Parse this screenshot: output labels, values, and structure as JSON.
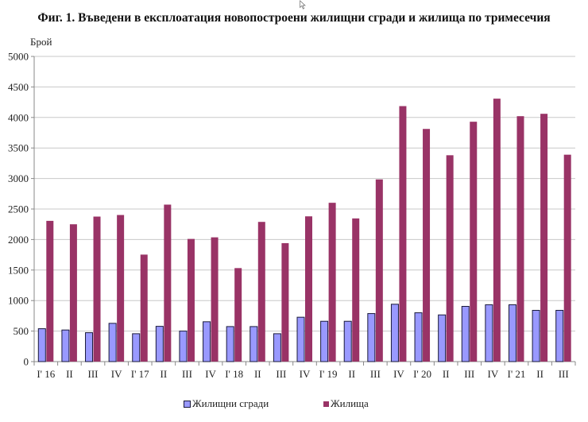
{
  "title": "Фиг. 1. Въведени в експлоатация новопостроени жилищни сгради и жилища по тримесечия",
  "colors": {
    "buildings": "#9999ff",
    "buildings_border": "#1a1a3a",
    "dwellings": "#993366",
    "grid": "#c8c8c8",
    "axis": "#888888"
  },
  "legend": [
    {
      "label": "Жилищни сгради",
      "color": "#9999ff"
    },
    {
      "label": "Жилища",
      "color": "#993366"
    }
  ],
  "chart_data": {
    "type": "bar",
    "title": "Фиг. 1. Въведени в експлоатация новопостроени жилищни сгради и жилища по тримесечия",
    "xlabel": "",
    "ylabel": "Брой",
    "ylim": [
      0,
      5000
    ],
    "yticks": [
      0,
      500,
      1000,
      1500,
      2000,
      2500,
      3000,
      3500,
      4000,
      4500,
      5000
    ],
    "grid": true,
    "legend_position": "bottom",
    "categories": [
      "I' 16",
      "II",
      "III",
      "IV",
      "I' 17",
      "II",
      "III",
      "IV",
      "I' 18",
      "II",
      "III",
      "IV",
      "I' 19",
      "II",
      "III",
      "IV",
      "I' 20",
      "II",
      "III",
      "IV",
      "I' 21",
      "II",
      "III"
    ],
    "series": [
      {
        "name": "Жилищни сгради",
        "values": [
          539,
          518,
          474,
          627,
          457,
          578,
          500,
          653,
          574,
          574,
          457,
          727,
          661,
          661,
          787,
          940,
          800,
          765,
          905,
          931,
          931,
          840,
          840
        ]
      },
      {
        "name": "Жилища",
        "values": [
          2306,
          2250,
          2376,
          2402,
          1753,
          2572,
          2010,
          2036,
          1532,
          2289,
          1941,
          2380,
          2602,
          2346,
          2985,
          4186,
          3812,
          3381,
          3930,
          4308,
          4021,
          4060,
          3390
        ]
      }
    ]
  }
}
